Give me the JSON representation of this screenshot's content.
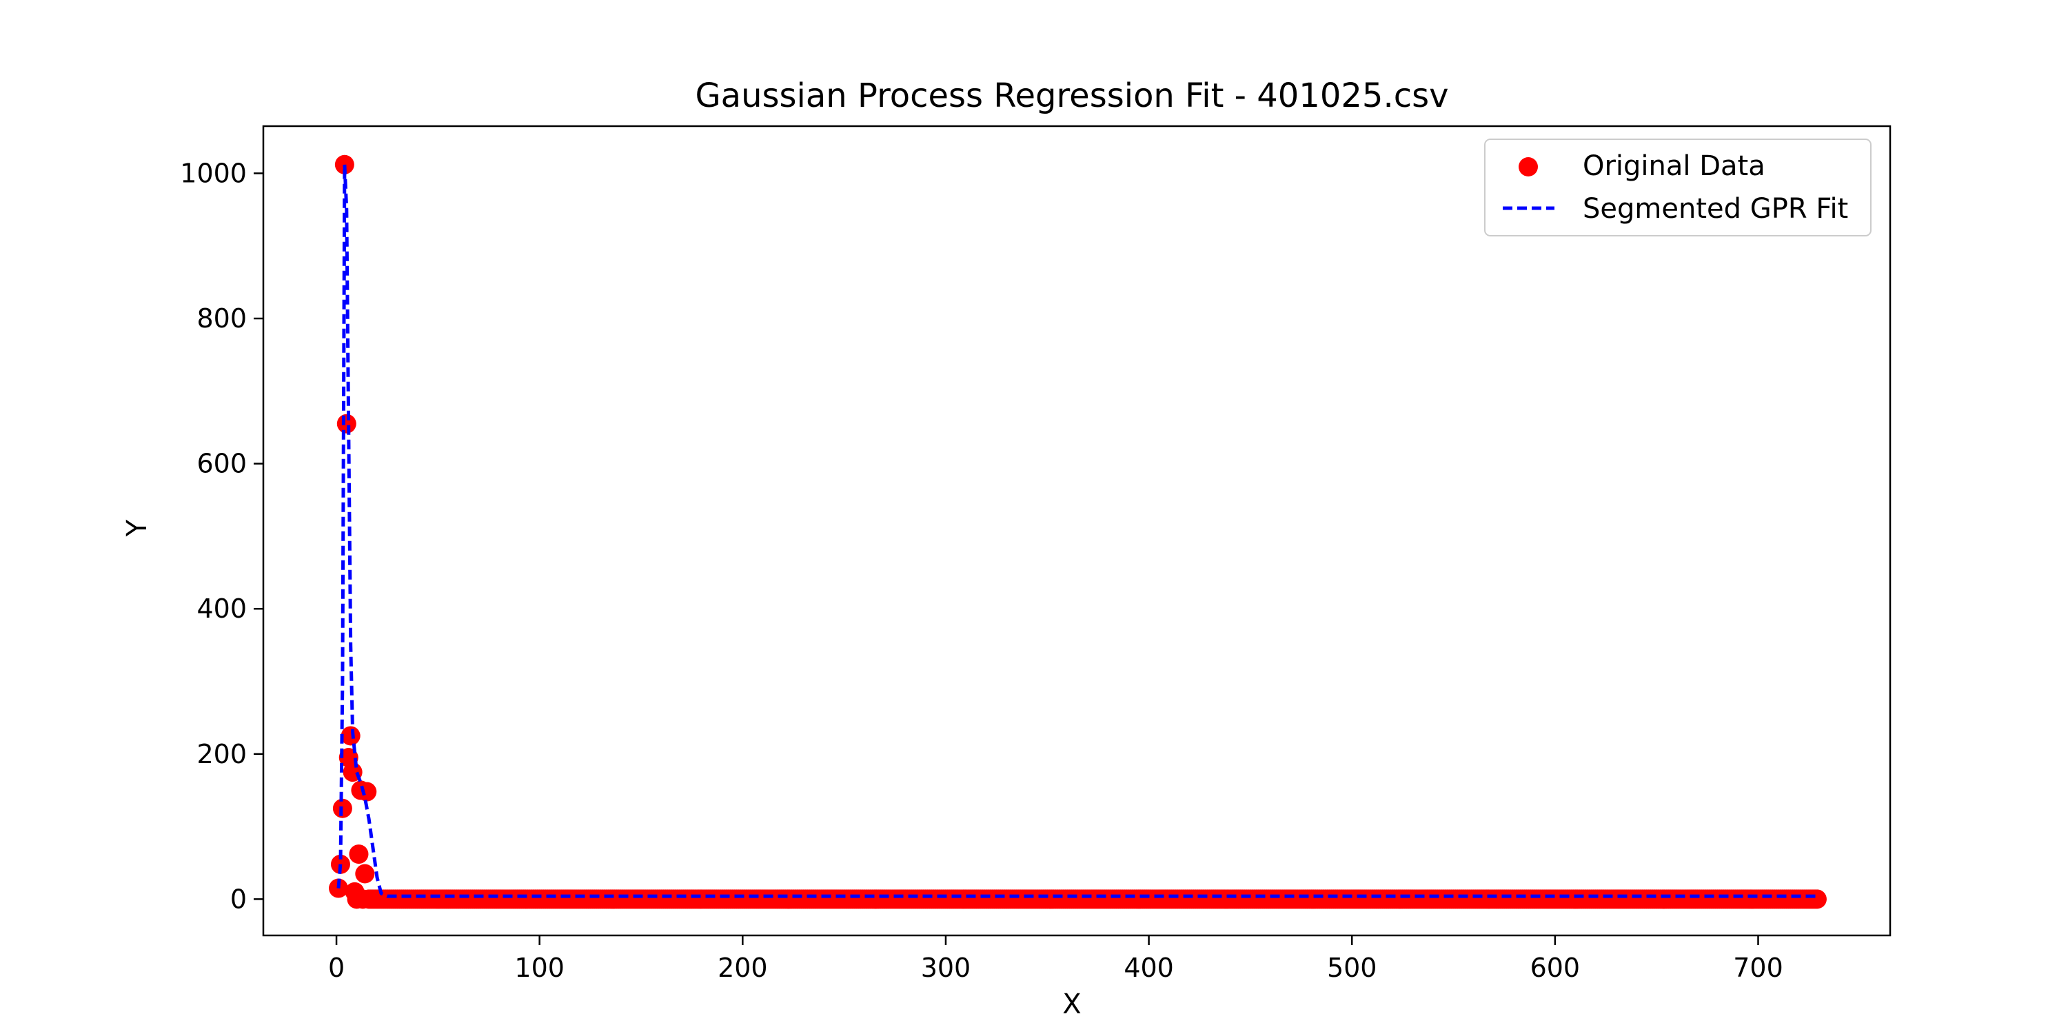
{
  "chart_data": {
    "type": "scatter",
    "title": "Gaussian Process Regression Fit - 401025.csv",
    "xlabel": "X",
    "ylabel": "Y",
    "xlim": [
      -36,
      765
    ],
    "ylim": [
      -50,
      1065
    ],
    "xticks": [
      0,
      100,
      200,
      300,
      400,
      500,
      600,
      700
    ],
    "yticks": [
      0,
      200,
      400,
      600,
      800,
      1000
    ],
    "grid": false,
    "legend_position": "top-right",
    "colors": {
      "scatter": "#ff0000",
      "fit": "#0000ff"
    },
    "series": [
      {
        "name": "Original Data",
        "kind": "scatter",
        "x": [
          1,
          2,
          3,
          4,
          5,
          6,
          7,
          8,
          9,
          10,
          11,
          12,
          13,
          14,
          15,
          16
        ],
        "y": [
          15,
          48,
          125,
          1012,
          655,
          195,
          225,
          175,
          10,
          0,
          62,
          150,
          0,
          35,
          148,
          0
        ],
        "tail": {
          "x_start": 17,
          "x_end": 729,
          "y": 0
        }
      },
      {
        "name": "Segmented GPR Fit",
        "kind": "line",
        "style": "dashed",
        "x": [
          1,
          2,
          3,
          4,
          5,
          6,
          7,
          8,
          10,
          12,
          14,
          16,
          18,
          20,
          22,
          25,
          40,
          100,
          300,
          500,
          729
        ],
        "y": [
          15,
          50,
          300,
          1012,
          950,
          650,
          350,
          230,
          175,
          160,
          140,
          110,
          70,
          30,
          8,
          4,
          4,
          4,
          4,
          4,
          4
        ]
      }
    ]
  }
}
